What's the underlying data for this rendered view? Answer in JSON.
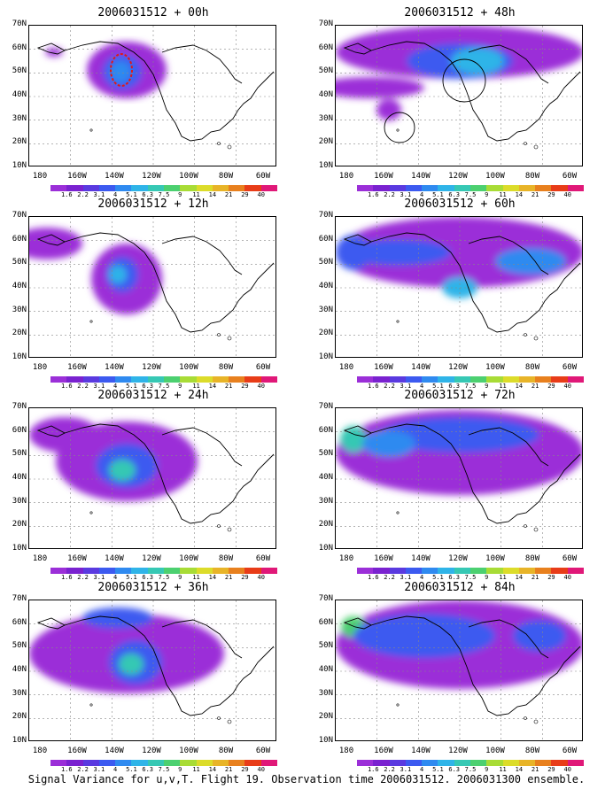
{
  "caption": "Signal Variance for u,v,T. Flight 19. Observation time 2006031512. 2006031300 ensemble.",
  "lat_labels": [
    "70N",
    "60N",
    "50N",
    "40N",
    "30N",
    "20N",
    "10N"
  ],
  "lon_labels": [
    "180",
    "160W",
    "140W",
    "120W",
    "100W",
    "80W",
    "60W"
  ],
  "colorbar": {
    "colors": [
      "#9b2fd8",
      "#7a22d0",
      "#5a3ae0",
      "#3c5af0",
      "#2f8af0",
      "#2fb4e8",
      "#36c8b4",
      "#4cd070",
      "#a8dc36",
      "#dcdc2a",
      "#e8b428",
      "#e8801e",
      "#e83c18",
      "#e01878"
    ],
    "labels": [
      "1.6",
      "2.2",
      "3.1",
      "4",
      "5.1",
      "6.3",
      "7.5",
      "9",
      "11",
      "14",
      "21",
      "29",
      "40"
    ]
  },
  "panels": [
    {
      "title": "2006031512 + 00h"
    },
    {
      "title": "2006031512 + 48h"
    },
    {
      "title": "2006031512 + 12h"
    },
    {
      "title": "2006031512 + 60h"
    },
    {
      "title": "2006031512 + 24h"
    },
    {
      "title": "2006031512 + 72h"
    },
    {
      "title": "2006031512 + 36h"
    },
    {
      "title": "2006031512 + 84h"
    }
  ]
}
